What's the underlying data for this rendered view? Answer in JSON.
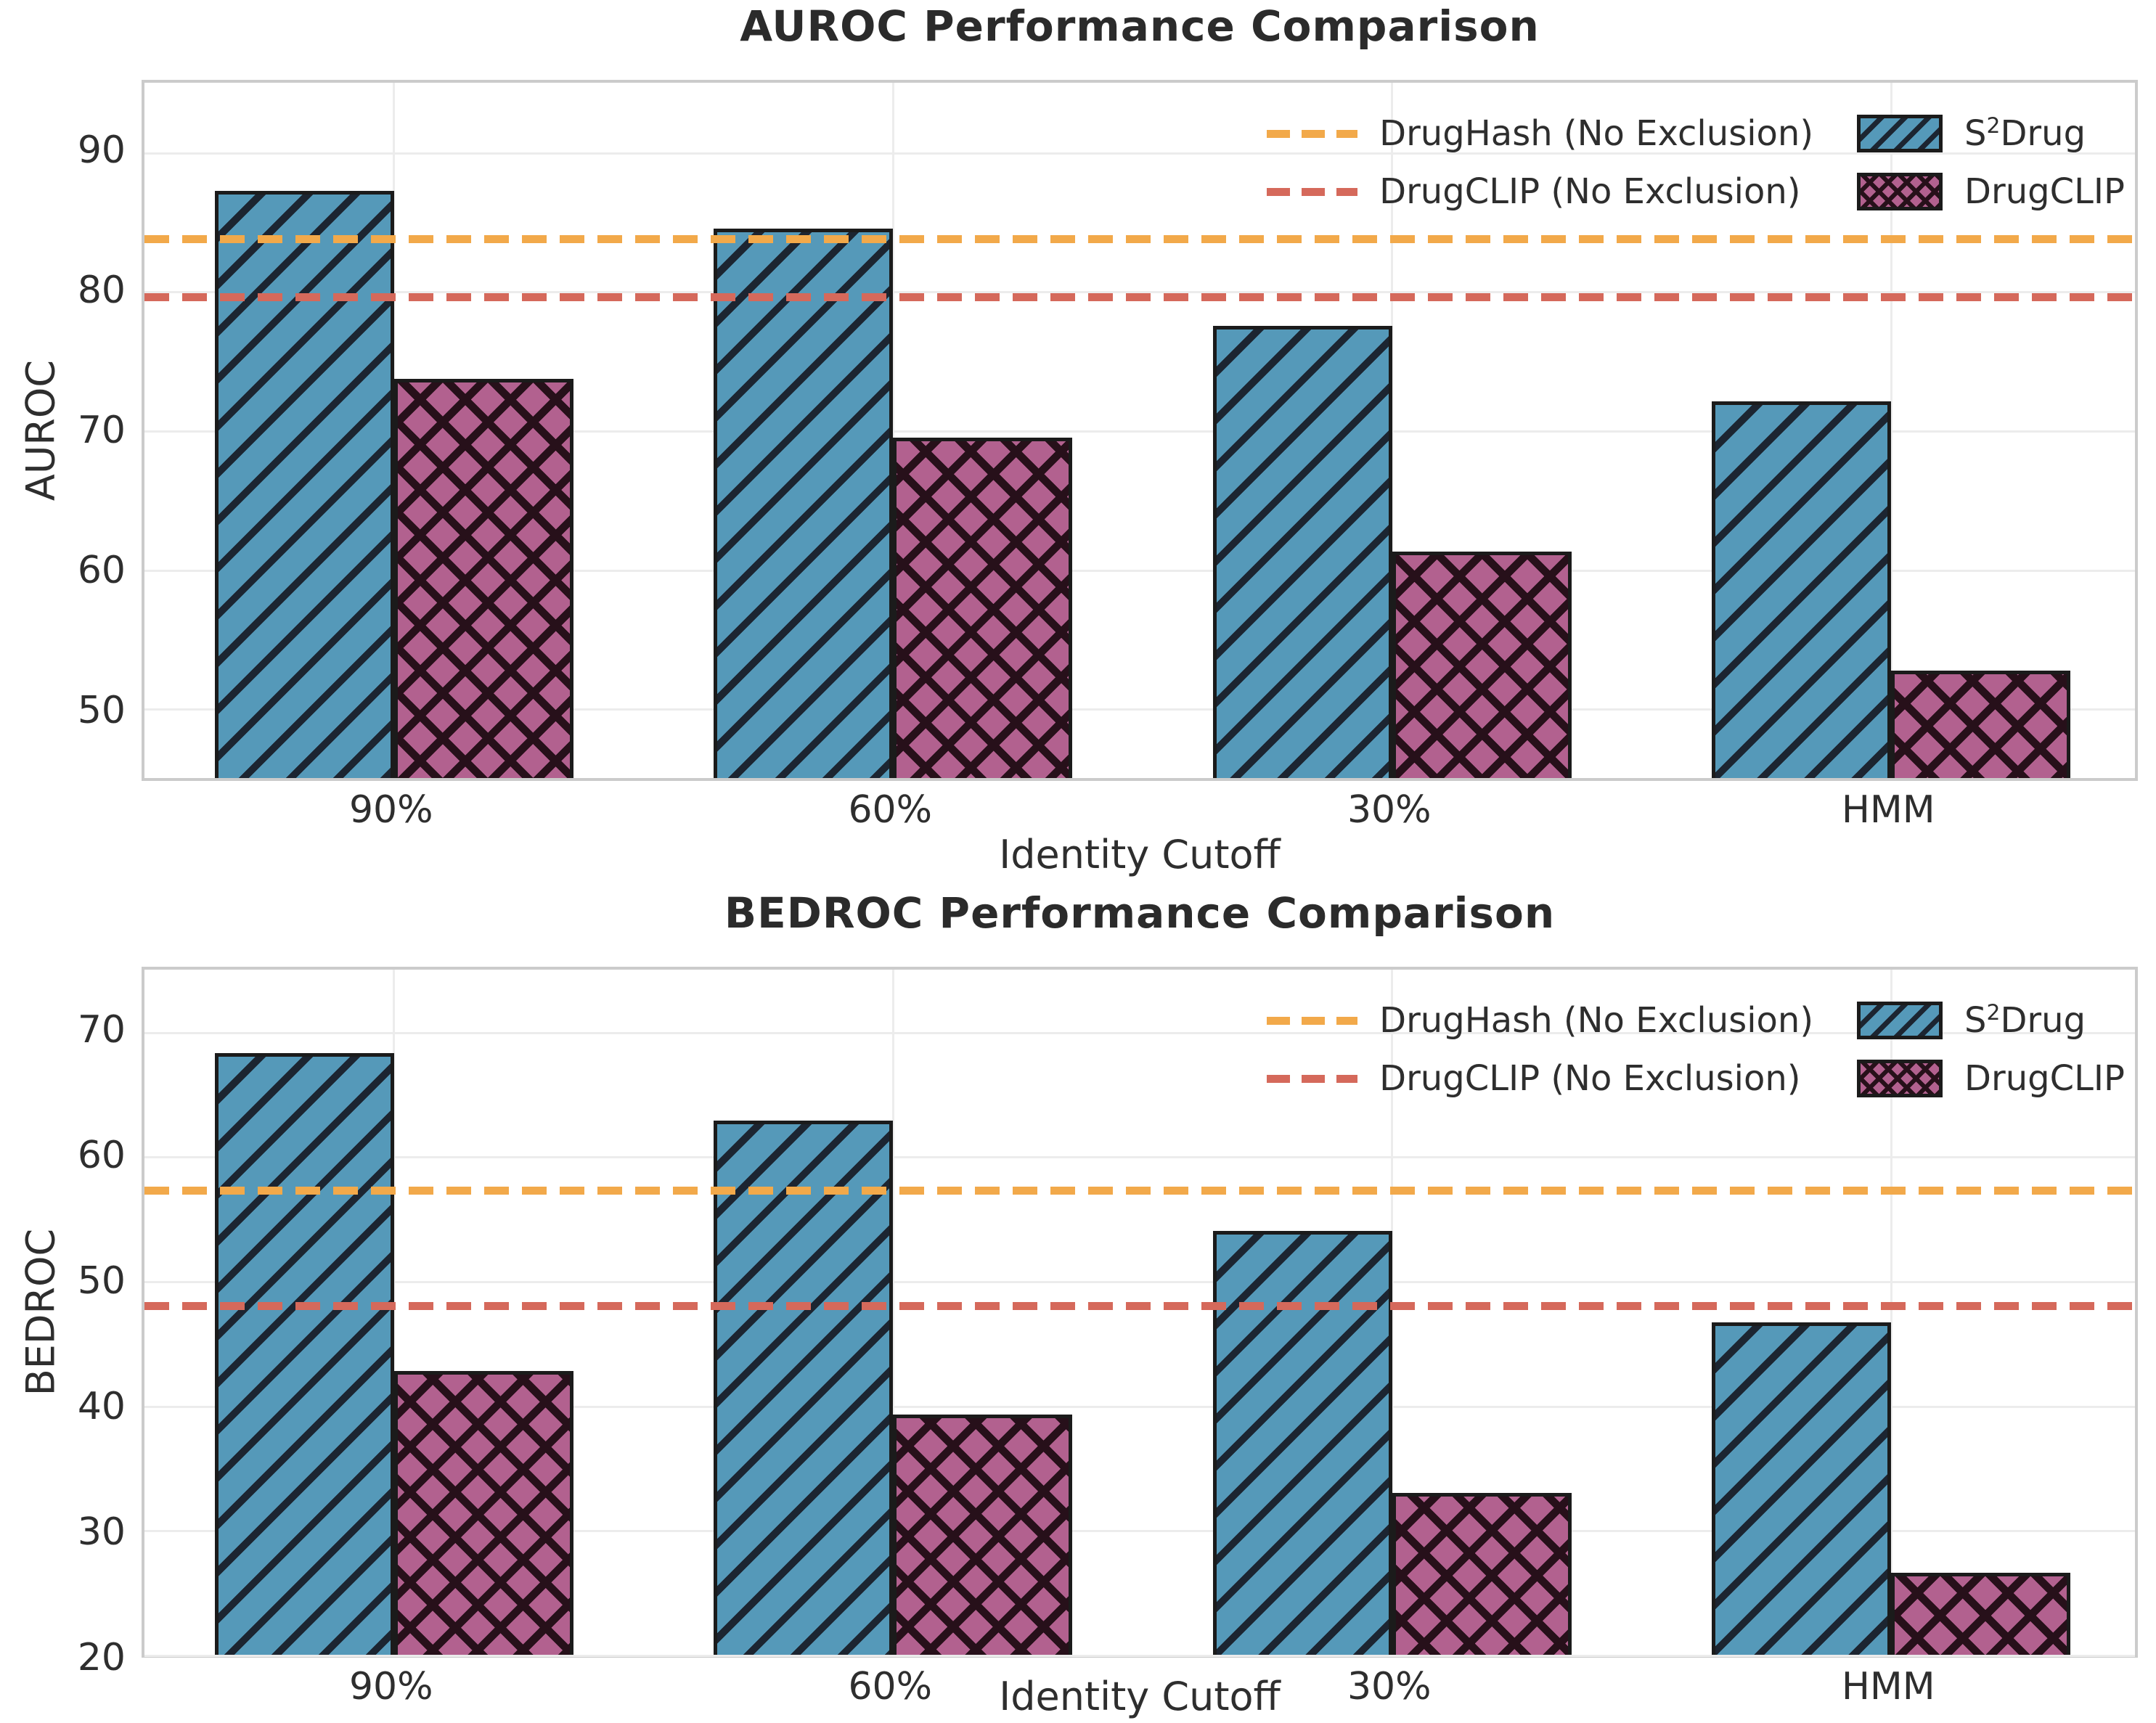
{
  "figure": {
    "background": "#ffffff",
    "text_color": "#2e2e2e",
    "grid_color": "#ececec",
    "spine_color": "#cbcbcb",
    "bar_edge_color": "#1b1b1b"
  },
  "chart_data": [
    {
      "type": "bar",
      "title": "AUROC Performance Comparison",
      "xlabel": "Identity Cutoff",
      "ylabel": "AUROC",
      "categories": [
        "90%",
        "60%",
        "30%",
        "HMM"
      ],
      "series": [
        {
          "key": "s2drug",
          "name": "S²Drug",
          "label_parts": {
            "pre": "S",
            "sup": "2",
            "post": "Drug"
          },
          "values": [
            87.2,
            84.5,
            77.5,
            72.1
          ],
          "fill": "#5599b9",
          "hatch": "diagonal"
        },
        {
          "key": "drugclip",
          "name": "DrugCLIP",
          "label_parts": {
            "pre": "DrugCLIP",
            "sup": "",
            "post": ""
          },
          "values": [
            73.7,
            69.5,
            61.3,
            52.7
          ],
          "fill": "#b2618f",
          "hatch": "cross"
        }
      ],
      "ref_lines": [
        {
          "key": "drughash-no-exclusion",
          "label": "DrugHash (No Exclusion)",
          "value": 83.8,
          "color": "#f2a94a"
        },
        {
          "key": "drugclip-no-exclusion",
          "label": "DrugCLIP (No Exclusion)",
          "value": 79.6,
          "color": "#d5695b"
        }
      ],
      "ylim": [
        45,
        95
      ],
      "yticks": [
        50,
        60,
        70,
        80,
        90
      ],
      "grid": true,
      "legend_position": "upper right"
    },
    {
      "type": "bar",
      "title": "BEDROC Performance Comparison",
      "xlabel": "Identity Cutoff",
      "ylabel": "BEDROC",
      "categories": [
        "90%",
        "60%",
        "30%",
        "HMM"
      ],
      "series": [
        {
          "key": "s2drug",
          "name": "S²Drug",
          "label_parts": {
            "pre": "S",
            "sup": "2",
            "post": "Drug"
          },
          "values": [
            68.3,
            62.9,
            54.0,
            46.7
          ],
          "fill": "#5599b9",
          "hatch": "diagonal"
        },
        {
          "key": "drugclip",
          "name": "DrugCLIP",
          "label_parts": {
            "pre": "DrugCLIP",
            "sup": "",
            "post": ""
          },
          "values": [
            42.8,
            39.3,
            33.0,
            26.6
          ],
          "fill": "#b2618f",
          "hatch": "cross"
        }
      ],
      "ref_lines": [
        {
          "key": "drughash-no-exclusion",
          "label": "DrugHash (No Exclusion)",
          "value": 57.3,
          "color": "#f2a94a"
        },
        {
          "key": "drugclip-no-exclusion",
          "label": "DrugCLIP (No Exclusion)",
          "value": 48.0,
          "color": "#d5695b"
        }
      ],
      "ylim": [
        20,
        75
      ],
      "yticks": [
        20,
        30,
        40,
        50,
        60,
        70
      ],
      "grid": true,
      "legend_position": "upper right"
    }
  ]
}
